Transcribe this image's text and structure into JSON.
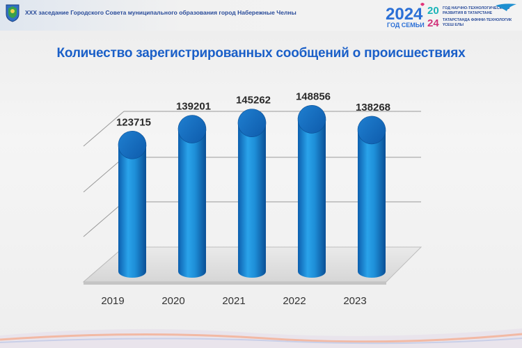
{
  "header": {
    "title": "XXX заседание Городского Совета муниципального образования город Набережные Челны"
  },
  "brand": {
    "year": "2024",
    "year_caption": "ГОД СЕМЬИ",
    "year_small_top": "20",
    "year_small_bottom": "24",
    "line1": "ГОД НАУЧНО-ТЕХНОЛОГИЧЕСКОГО",
    "line2": "РАЗВИТИЯ В ТАТАРСТАНЕ",
    "line3": "ТАТАРСТАНДА ФӘННИ-ТЕХНОЛОГИК",
    "line4": "ҮСЕШ ЕЛЫ"
  },
  "chart_data": {
    "type": "bar",
    "title": "Количество зарегистрированных сообщений о происшествиях",
    "categories": [
      "2019",
      "2020",
      "2021",
      "2022",
      "2023"
    ],
    "values": [
      123715,
      139201,
      145262,
      148856,
      138268
    ],
    "xlabel": "",
    "ylabel": "",
    "grid": true,
    "legend": "none",
    "bar_color": "#1e8fd8"
  },
  "colors": {
    "title": "#1a5fc8",
    "bar": "#1e8fd8",
    "header_text": "#2a4c9a"
  }
}
